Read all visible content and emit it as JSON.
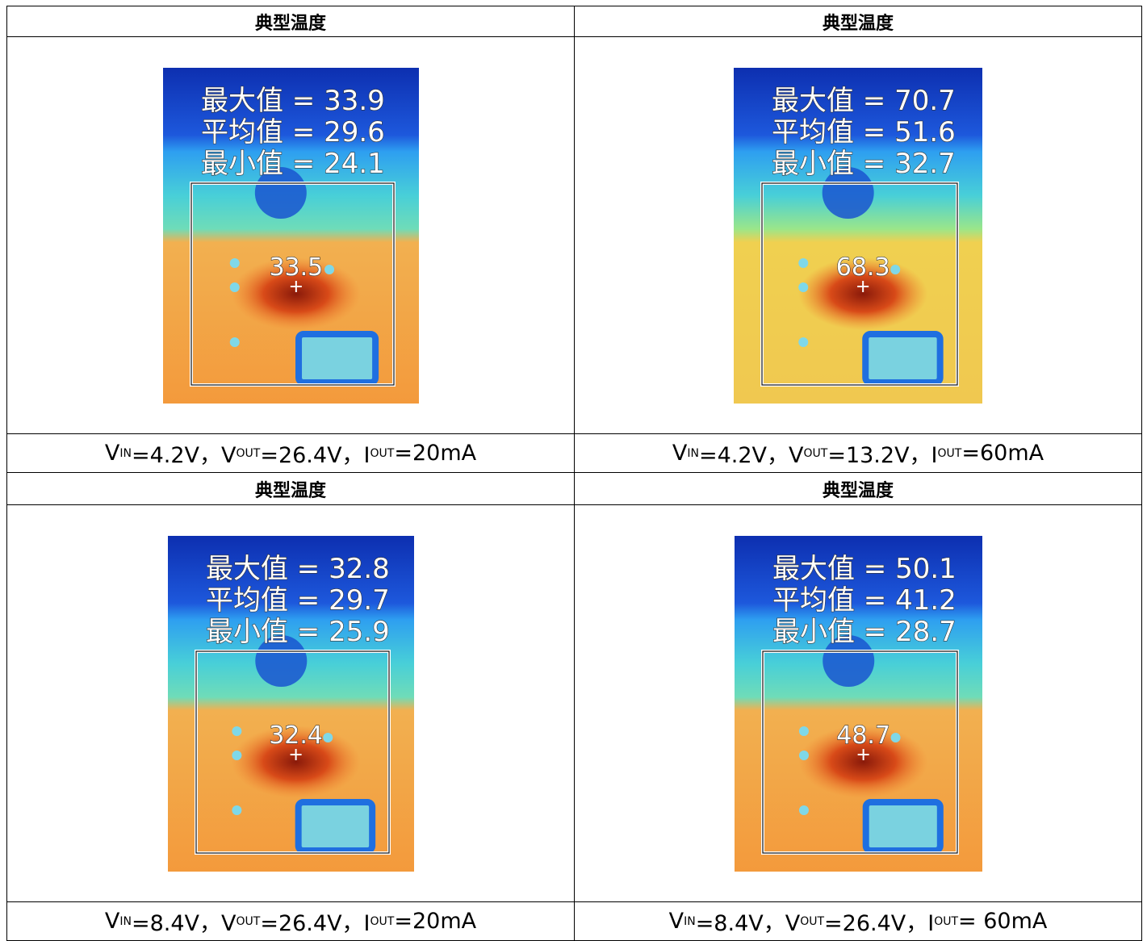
{
  "cells": [
    {
      "title": "典型温度",
      "readings": [
        "最大值 = 33.9",
        "平均值 = 29.6",
        "最小值 = 24.1"
      ],
      "spot": "33.5",
      "caption": [
        "V",
        "IN",
        "=4.2V，V",
        "OUT",
        "=26.4V，I",
        "OUT",
        "=20mA"
      ]
    },
    {
      "title": "典型温度",
      "readings": [
        "最大值 = 70.7",
        "平均值 = 51.6",
        "最小值 = 32.7"
      ],
      "spot": "68.3",
      "caption": [
        "V",
        "IN",
        "=4.2V，V",
        "OUT",
        "=13.2V，I",
        "OUT",
        "=60mA"
      ]
    },
    {
      "title": "典型温度",
      "readings": [
        "最大值 = 32.8",
        "平均值 = 29.7",
        "最小值 = 25.9"
      ],
      "spot": "32.4",
      "caption": [
        "V",
        "IN",
        "=8.4V，V",
        "OUT",
        "=26.4V，I",
        "OUT",
        "=20mA"
      ]
    },
    {
      "title": "典型温度",
      "readings": [
        "最大值 = 50.1",
        "平均值 = 41.2",
        "最小值 = 28.7"
      ],
      "spot": "48.7",
      "caption": [
        "V",
        "IN",
        "=8.4V，V",
        "OUT",
        "=26.4V，I",
        "OUT",
        "= 60mA"
      ]
    }
  ]
}
